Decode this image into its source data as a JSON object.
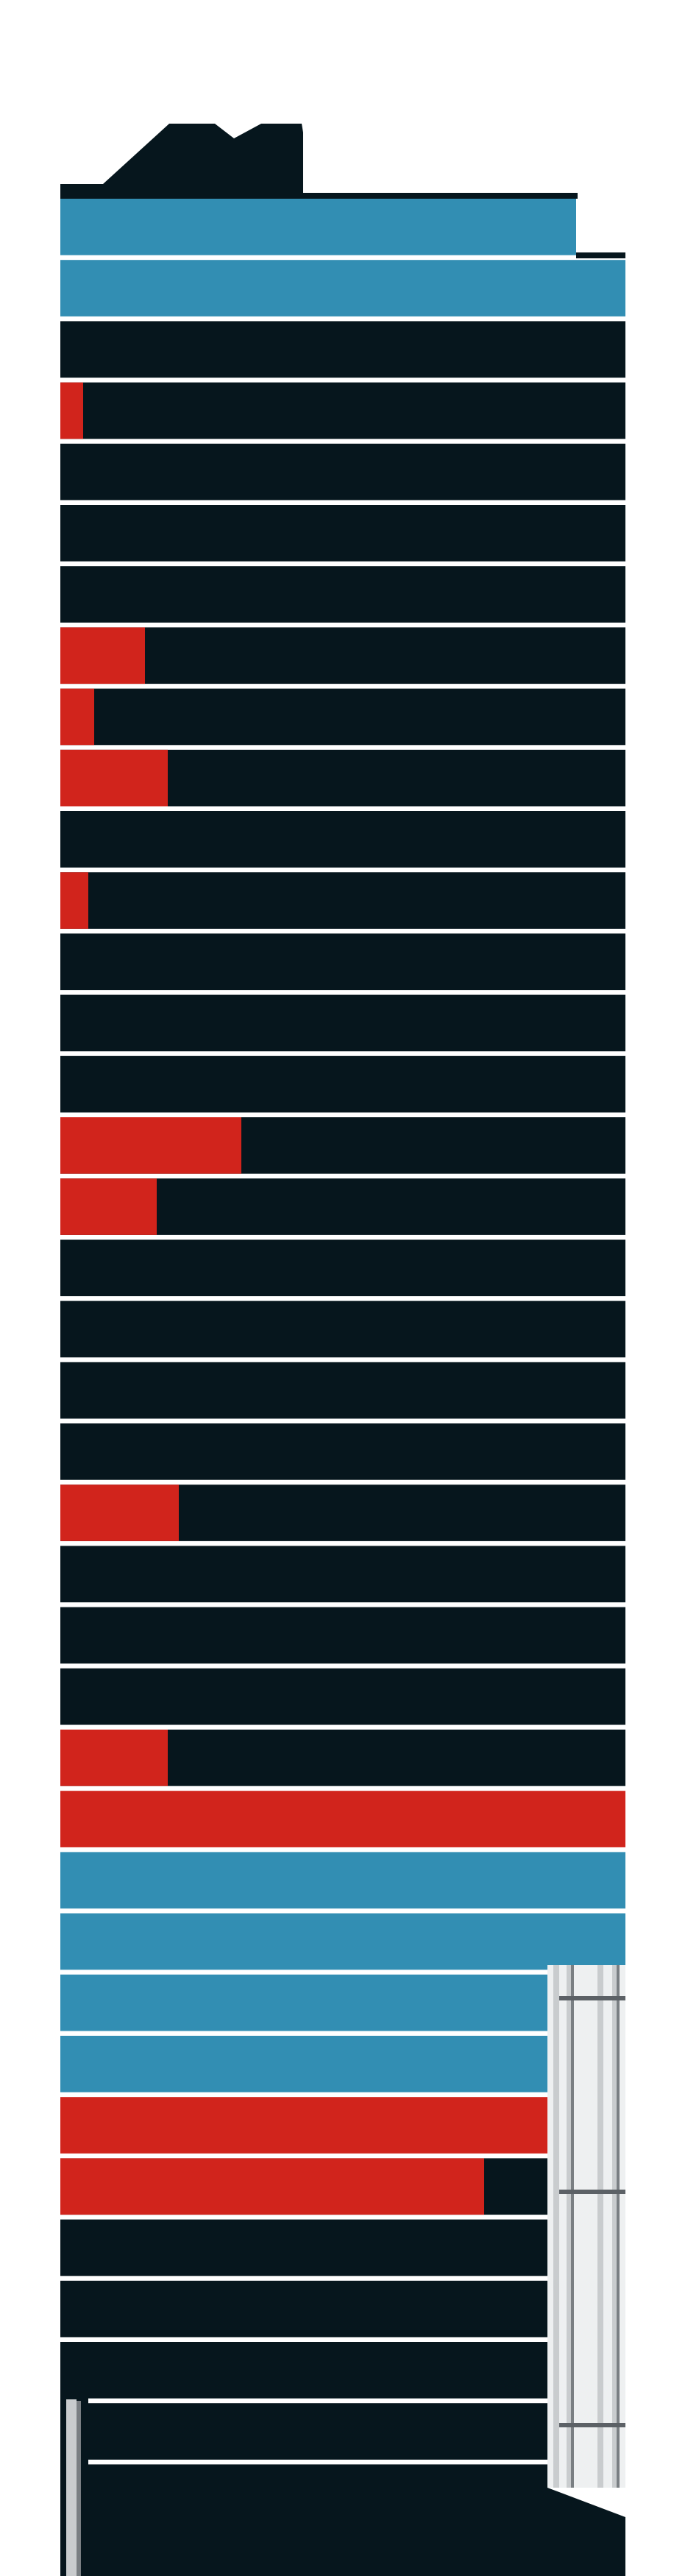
{
  "colors": {
    "background": "#ffffff",
    "dark": "#06161d",
    "blue": "#328eb3",
    "red": "#d1241c",
    "gray": "#c9ccce"
  },
  "tower": {
    "rows": [
      {
        "color": "blue",
        "fill": 1
      },
      {
        "color": "blue",
        "fill": 1
      },
      {
        "color": "dark",
        "fill": 0
      },
      {
        "color": "dark",
        "fill": 0.04
      },
      {
        "color": "dark",
        "fill": 0
      },
      {
        "color": "dark",
        "fill": 0
      },
      {
        "color": "dark",
        "fill": 0
      },
      {
        "color": "dark",
        "fill": 0.15
      },
      {
        "color": "dark",
        "fill": 0.06
      },
      {
        "color": "dark",
        "fill": 0.19
      },
      {
        "color": "dark",
        "fill": 0
      },
      {
        "color": "dark",
        "fill": 0.05
      },
      {
        "color": "dark",
        "fill": 0
      },
      {
        "color": "dark",
        "fill": 0
      },
      {
        "color": "dark",
        "fill": 0
      },
      {
        "color": "dark",
        "fill": 0.32
      },
      {
        "color": "dark",
        "fill": 0.17
      },
      {
        "color": "dark",
        "fill": 0
      },
      {
        "color": "dark",
        "fill": 0
      },
      {
        "color": "dark",
        "fill": 0
      },
      {
        "color": "dark",
        "fill": 0
      },
      {
        "color": "dark",
        "fill": 0.21
      },
      {
        "color": "dark",
        "fill": 0
      },
      {
        "color": "dark",
        "fill": 0
      },
      {
        "color": "dark",
        "fill": 0
      },
      {
        "color": "dark",
        "fill": 0.19
      },
      {
        "color": "red",
        "fill": 1
      },
      {
        "color": "blue",
        "fill": 1
      },
      {
        "color": "blue",
        "fill": 1
      },
      {
        "color": "blue",
        "fill": 1
      },
      {
        "color": "blue",
        "fill": 1
      },
      {
        "color": "red",
        "fill": 1
      },
      {
        "color": "dark",
        "fill": 0.87
      },
      {
        "color": "dark",
        "fill": 0
      },
      {
        "color": "dark",
        "fill": 0
      },
      {
        "color": "dark",
        "fill": 0
      },
      {
        "color": "dark",
        "fill": 0
      },
      {
        "color": "dark",
        "fill": 0
      }
    ]
  }
}
